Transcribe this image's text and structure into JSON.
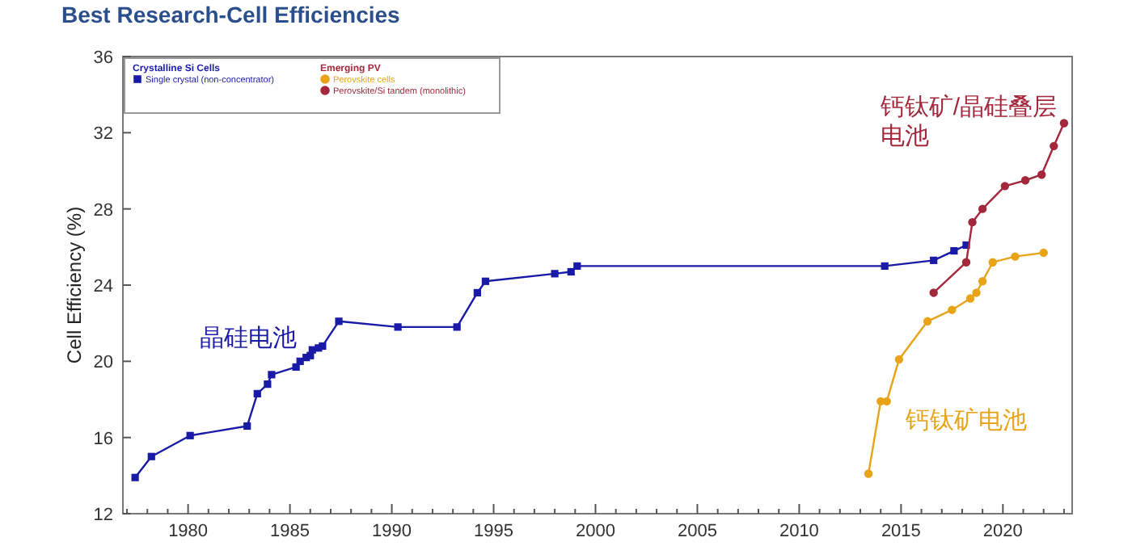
{
  "chart_data": {
    "type": "line",
    "title": "Best Research-Cell Efficiencies",
    "ylabel": "Cell Efficiency (%)",
    "xlim": [
      1976.8,
      2023.4
    ],
    "ylim": [
      12,
      36
    ],
    "xticks": [
      {
        "value": 1977,
        "label": null
      },
      {
        "value": 1978,
        "label": null
      },
      {
        "value": 1979,
        "label": null
      },
      1980,
      {
        "value": 1981,
        "label": null
      },
      {
        "value": 1982,
        "label": null
      },
      {
        "value": 1983,
        "label": null
      },
      {
        "value": 1984,
        "label": null
      },
      1985,
      {
        "value": 1986,
        "label": null
      },
      {
        "value": 1987,
        "label": null
      },
      {
        "value": 1988,
        "label": null
      },
      {
        "value": 1989,
        "label": null
      },
      1990,
      {
        "value": 1991,
        "label": null
      },
      {
        "value": 1992,
        "label": null
      },
      {
        "value": 1993,
        "label": null
      },
      {
        "value": 1994,
        "label": null
      },
      1995,
      {
        "value": 1996,
        "label": null
      },
      {
        "value": 1997,
        "label": null
      },
      {
        "value": 1998,
        "label": null
      },
      {
        "value": 1999,
        "label": null
      },
      2000,
      {
        "value": 2001,
        "label": null
      },
      {
        "value": 2002,
        "label": null
      },
      {
        "value": 2003,
        "label": null
      },
      {
        "value": 2004,
        "label": null
      },
      2005,
      {
        "value": 2006,
        "label": null
      },
      {
        "value": 2007,
        "label": null
      },
      {
        "value": 2008,
        "label": null
      },
      {
        "value": 2009,
        "label": null
      },
      2010,
      {
        "value": 2011,
        "label": null
      },
      {
        "value": 2012,
        "label": null
      },
      {
        "value": 2013,
        "label": null
      },
      {
        "value": 2014,
        "label": null
      },
      2015,
      {
        "value": 2016,
        "label": null
      },
      {
        "value": 2017,
        "label": null
      },
      {
        "value": 2018,
        "label": null
      },
      {
        "value": 2019,
        "label": null
      },
      2020,
      {
        "value": 2021,
        "label": null
      },
      {
        "value": 2022,
        "label": null
      },
      {
        "value": 2023,
        "label": null
      }
    ],
    "yticks": [
      12,
      16,
      20,
      24,
      28,
      32,
      36
    ],
    "grid": false,
    "legend": "top left",
    "series": [
      {
        "name": "Single crystal (non-concentrator)",
        "color": "#1a1aa8",
        "marker": "square",
        "x": [
          1977.4,
          1978.2,
          1980.1,
          1982.9,
          1983.4,
          1983.9,
          1984.1,
          1985.3,
          1985.5,
          1985.8,
          1986.0,
          1986.1,
          1986.4,
          1986.6,
          1987.4,
          1990.3,
          1993.2,
          1994.2,
          1994.6,
          1998.0,
          1998.8,
          1999.1,
          2014.2,
          2016.6,
          2017.6,
          2018.2
        ],
        "values": [
          13.9,
          15.0,
          16.1,
          16.6,
          18.3,
          18.8,
          19.3,
          19.7,
          20.0,
          20.2,
          20.3,
          20.6,
          20.7,
          20.8,
          22.1,
          21.8,
          21.8,
          23.6,
          24.2,
          24.6,
          24.7,
          25.0,
          25.0,
          25.3,
          25.8,
          26.1
        ]
      },
      {
        "name": "Perovskite cells",
        "color": "#e8a317",
        "marker": "circle",
        "x": [
          2013.4,
          2014.0,
          2014.3,
          2014.9,
          2016.3,
          2017.5,
          2018.4,
          2018.7,
          2019.0,
          2019.5,
          2020.6,
          2022.0
        ],
        "values": [
          14.1,
          17.9,
          17.9,
          20.1,
          22.1,
          22.7,
          23.3,
          23.6,
          24.2,
          25.2,
          25.5,
          25.7
        ]
      },
      {
        "name": "Perovskite/Si tandem (monolithic)",
        "color": "#a3283c",
        "marker": "circle",
        "x": [
          2016.6,
          2018.2,
          2018.5,
          2019.0,
          2020.1,
          2021.1,
          2021.9,
          2022.5,
          2023.0
        ],
        "values": [
          23.6,
          25.2,
          27.3,
          28.0,
          29.2,
          29.5,
          29.8,
          31.3,
          32.5
        ]
      }
    ],
    "annotations": [
      "Crystalline Si Cells",
      "Emerging PV",
      "晶硅电池",
      "钙钛矿电池",
      "钙钛矿/晶硅叠层电池"
    ]
  }
}
